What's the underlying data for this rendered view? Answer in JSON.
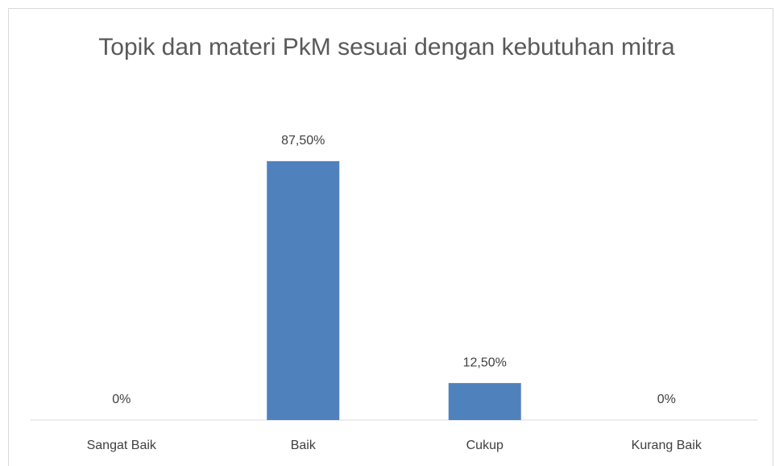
{
  "chart_data": {
    "type": "bar",
    "title": "Topik dan materi PkM sesuai dengan kebutuhan mitra",
    "categories": [
      "Sangat Baik",
      "Baik",
      "Cukup",
      "Kurang Baik"
    ],
    "values": [
      0,
      87.5,
      12.5,
      0
    ],
    "value_labels": [
      "0%",
      "87,50%",
      "12,50%",
      "0%"
    ],
    "color": "#4f81bd",
    "ylim": [
      0,
      100
    ]
  }
}
